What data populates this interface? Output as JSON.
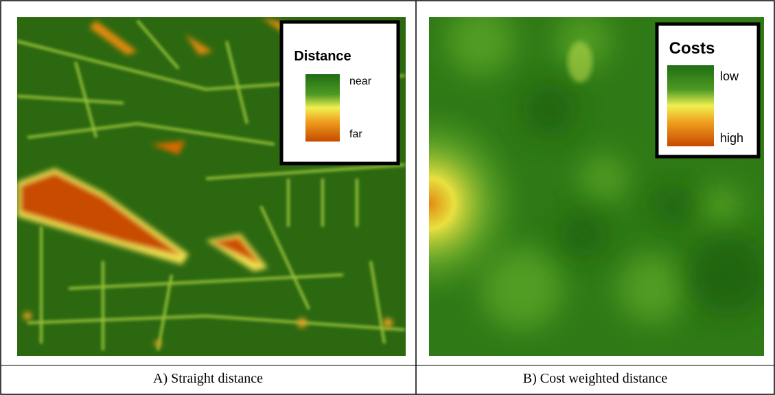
{
  "panels": [
    {
      "legend": {
        "title": "Distance",
        "labels": [
          "near",
          "far"
        ]
      },
      "caption": "A) Straight distance"
    },
    {
      "legend": {
        "title": "Costs",
        "labels": [
          "low",
          "high"
        ]
      },
      "caption": "B) Cost weighted distance"
    }
  ]
}
